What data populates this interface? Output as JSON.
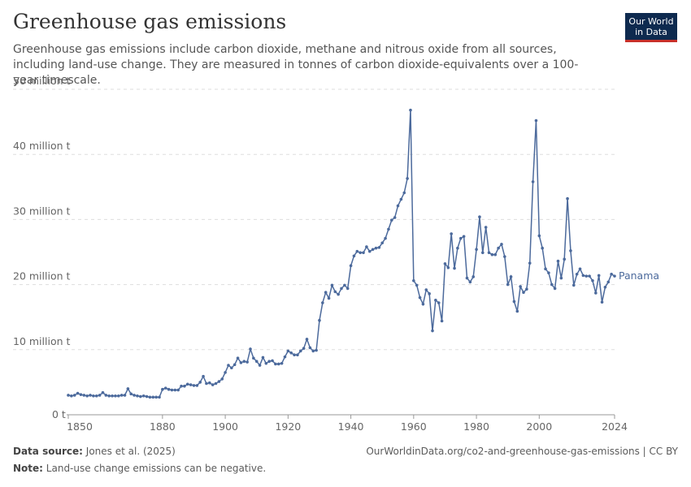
{
  "chart_data": {
    "type": "line",
    "title": "Greenhouse gas emissions",
    "subtitle": "Greenhouse gas emissions include carbon dioxide, methane and nitrous oxide from all sources, including land-use change. They are measured in tonnes of carbon dioxide-equivalents over a 100-year timescale.",
    "logo": [
      "Our World",
      "in Data"
    ],
    "source_label": "Data source:",
    "source": "Jones et al. (2025)",
    "url": "OurWorldinData.org/co2-and-greenhouse-gas-emissions | CC BY",
    "note_label": "Note:",
    "note": "Land-use change emissions can be negative.",
    "x": [
      1850,
      1851,
      1852,
      1853,
      1854,
      1855,
      1856,
      1857,
      1858,
      1859,
      1860,
      1861,
      1862,
      1863,
      1864,
      1865,
      1866,
      1867,
      1868,
      1869,
      1870,
      1871,
      1872,
      1873,
      1874,
      1875,
      1876,
      1877,
      1878,
      1879,
      1880,
      1881,
      1882,
      1883,
      1884,
      1885,
      1886,
      1887,
      1888,
      1889,
      1890,
      1891,
      1892,
      1893,
      1894,
      1895,
      1896,
      1897,
      1898,
      1899,
      1900,
      1901,
      1902,
      1903,
      1904,
      1905,
      1906,
      1907,
      1908,
      1909,
      1910,
      1911,
      1912,
      1913,
      1914,
      1915,
      1916,
      1917,
      1918,
      1919,
      1920,
      1921,
      1922,
      1923,
      1924,
      1925,
      1926,
      1927,
      1928,
      1929,
      1930,
      1931,
      1932,
      1933,
      1934,
      1935,
      1936,
      1937,
      1938,
      1939,
      1940,
      1941,
      1942,
      1943,
      1944,
      1945,
      1946,
      1947,
      1948,
      1949,
      1950,
      1951,
      1952,
      1953,
      1954,
      1955,
      1956,
      1957,
      1958,
      1959,
      1960,
      1961,
      1962,
      1963,
      1964,
      1965,
      1966,
      1967,
      1968,
      1969,
      1970,
      1971,
      1972,
      1973,
      1974,
      1975,
      1976,
      1977,
      1978,
      1979,
      1980,
      1981,
      1982,
      1983,
      1984,
      1985,
      1986,
      1987,
      1988,
      1989,
      1990,
      1991,
      1992,
      1993,
      1994,
      1995,
      1996,
      1997,
      1998,
      1999,
      2000,
      2001,
      2002,
      2003,
      2004,
      2005,
      2006,
      2007,
      2008,
      2009,
      2010,
      2011,
      2012,
      2013,
      2014,
      2015,
      2016,
      2017,
      2018,
      2019,
      2020,
      2021,
      2022,
      2023,
      2024
    ],
    "series": [
      {
        "name": "Panama",
        "color": "#4c6a9c",
        "values": [
          3.0,
          2.9,
          3.0,
          3.3,
          3.1,
          3.0,
          2.9,
          3.0,
          2.9,
          2.9,
          3.0,
          3.4,
          3.0,
          2.9,
          2.9,
          2.9,
          2.9,
          3.0,
          3.0,
          4.0,
          3.2,
          3.0,
          2.9,
          2.8,
          2.9,
          2.8,
          2.7,
          2.7,
          2.7,
          2.7,
          3.9,
          4.1,
          3.9,
          3.8,
          3.8,
          3.8,
          4.4,
          4.4,
          4.7,
          4.6,
          4.5,
          4.5,
          5.0,
          5.9,
          4.8,
          4.9,
          4.6,
          4.8,
          5.1,
          5.5,
          6.5,
          7.6,
          7.2,
          7.7,
          8.7,
          8.0,
          8.2,
          8.1,
          10.1,
          8.7,
          8.2,
          7.6,
          8.8,
          7.9,
          8.2,
          8.3,
          7.8,
          7.8,
          7.9,
          8.9,
          9.8,
          9.5,
          9.2,
          9.2,
          9.8,
          10.2,
          11.6,
          10.3,
          9.8,
          9.9,
          14.5,
          17.2,
          18.8,
          17.9,
          19.9,
          18.9,
          18.5,
          19.4,
          19.9,
          19.4,
          22.9,
          24.4,
          25.1,
          24.9,
          24.9,
          25.8,
          25.1,
          25.4,
          25.6,
          25.7,
          26.4,
          27.1,
          28.5,
          29.9,
          30.3,
          32.1,
          33.1,
          34.1,
          36.3,
          46.8,
          20.6,
          19.9,
          18.0,
          17.0,
          19.2,
          18.6,
          12.9,
          17.6,
          17.2,
          14.4,
          23.2,
          22.6,
          27.8,
          22.5,
          25.6,
          27.1,
          27.4,
          21.0,
          20.4,
          21.2,
          25.4,
          30.4,
          24.9,
          28.8,
          24.9,
          24.6,
          24.6,
          25.6,
          26.2,
          24.3,
          20.0,
          21.2,
          17.4,
          15.9,
          19.7,
          18.8,
          19.3,
          23.3,
          35.8,
          45.2,
          27.5,
          25.6,
          22.4,
          21.8,
          20.0,
          19.4,
          23.6,
          21.0,
          23.9,
          33.2,
          25.2,
          19.9,
          21.6,
          22.4,
          21.4,
          21.3,
          21.3,
          20.6,
          18.7,
          21.4,
          17.3,
          19.6,
          20.4,
          21.6,
          21.3
        ]
      }
    ],
    "xlim": [
      1850,
      2024
    ],
    "xticks": [
      1850,
      1880,
      1900,
      1920,
      1940,
      1960,
      1980,
      2000,
      2024
    ],
    "ylim": [
      0,
      50
    ],
    "yticks": [
      {
        "value": 0,
        "label": "0 t"
      },
      {
        "value": 10,
        "label": "10 million t"
      },
      {
        "value": 20,
        "label": "20 million t"
      },
      {
        "value": 30,
        "label": "30 million t"
      },
      {
        "value": 40,
        "label": "40 million t"
      },
      {
        "value": 50,
        "label": "50 million t"
      }
    ],
    "grid": true
  }
}
